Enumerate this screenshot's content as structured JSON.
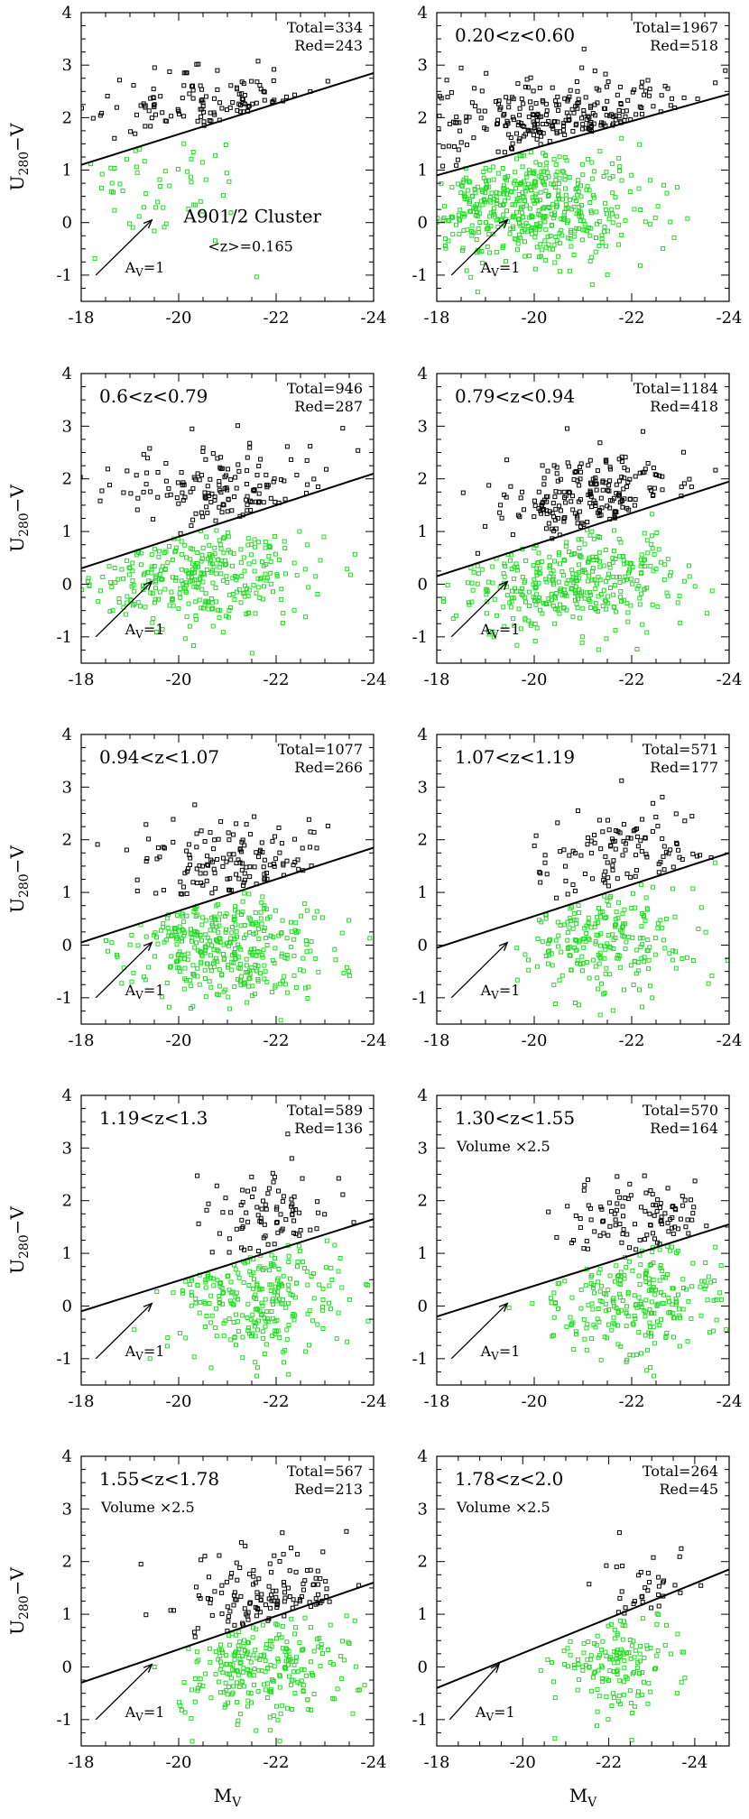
{
  "figure": {
    "x_axis_label": "M",
    "x_axis_label_sub": "V",
    "y_axis_label": "U",
    "y_axis_label_sub": "280",
    "y_axis_label_tail": "−V",
    "arrow_label": "A",
    "arrow_label_sub": "V",
    "arrow_label_tail": "=1",
    "colors": {
      "red_sequence": "#000000",
      "blue_cloud": "#22dd22",
      "line": "#000000"
    }
  },
  "chart_data": [
    {
      "type": "scatter",
      "id": "p1",
      "title": "A901/2 Cluster",
      "subtitle": "<z>=0.165",
      "total": "Total=334",
      "red": "Red=243",
      "note": "",
      "xlim": [
        -18,
        -24
      ],
      "ylim": [
        -1.5,
        4
      ],
      "xticks": [
        "-18",
        "-20",
        "-22",
        "-24"
      ],
      "yticks": [
        "-1",
        "0",
        "1",
        "2",
        "3",
        "4"
      ],
      "divider": {
        "x": [
          -18,
          -24
        ],
        "y": [
          1.1,
          2.85
        ]
      },
      "red_cloud": {
        "n": 120,
        "cx": -20.9,
        "cy": 2.2,
        "sx": 1.35,
        "sy": 0.32,
        "slope": 0.29,
        "offset": 1.1
      },
      "blue_cloud": {
        "n": 55,
        "cx": -19.6,
        "cy": 0.9,
        "sx": 1.0,
        "sy": 0.7,
        "slope": 0.29,
        "offset": 1.1
      }
    },
    {
      "type": "scatter",
      "id": "p2",
      "title": "0.20<z<0.60",
      "subtitle": "",
      "total": "Total=1967",
      "red": "Red=518",
      "note": "",
      "xlim": [
        -18,
        -24
      ],
      "ylim": [
        -1.5,
        4
      ],
      "xticks": [
        "-18",
        "-20",
        "-22",
        "-24"
      ],
      "yticks": [
        "-1",
        "0",
        "1",
        "2",
        "3",
        "4"
      ],
      "divider": {
        "x": [
          -18,
          -24
        ],
        "y": [
          0.9,
          2.45
        ]
      },
      "red_cloud": {
        "n": 260,
        "cx": -20.9,
        "cy": 1.85,
        "sx": 1.4,
        "sy": 0.45,
        "slope": 0.26,
        "offset": 0.9
      },
      "blue_cloud": {
        "n": 520,
        "cx": -19.8,
        "cy": 0.35,
        "sx": 1.15,
        "sy": 0.55,
        "slope": 0.26,
        "offset": 0.9
      }
    },
    {
      "type": "scatter",
      "id": "p3",
      "title": "0.6<z<0.79",
      "subtitle": "",
      "total": "Total=946",
      "red": "Red=287",
      "note": "",
      "xlim": [
        -18,
        -24
      ],
      "ylim": [
        -1.5,
        4
      ],
      "xticks": [
        "-18",
        "-20",
        "-22",
        "-24"
      ],
      "yticks": [
        "-1",
        "0",
        "1",
        "2",
        "3",
        "4"
      ],
      "divider": {
        "x": [
          -18,
          -24
        ],
        "y": [
          0.3,
          2.1
        ]
      },
      "red_cloud": {
        "n": 150,
        "cx": -21.0,
        "cy": 1.75,
        "sx": 1.2,
        "sy": 0.45,
        "slope": 0.3,
        "offset": 0.3
      },
      "blue_cloud": {
        "n": 330,
        "cx": -20.3,
        "cy": 0.15,
        "sx": 1.2,
        "sy": 0.5,
        "slope": 0.3,
        "offset": 0.3
      }
    },
    {
      "type": "scatter",
      "id": "p4",
      "title": "0.79<z<0.94",
      "subtitle": "",
      "total": "Total=1184",
      "red": "Red=418",
      "note": "",
      "xlim": [
        -18,
        -24
      ],
      "ylim": [
        -1.5,
        4
      ],
      "xticks": [
        "-18",
        "-20",
        "-22",
        "-24"
      ],
      "yticks": [
        "-1",
        "0",
        "1",
        "2",
        "3",
        "4"
      ],
      "divider": {
        "x": [
          -18,
          -24
        ],
        "y": [
          0.15,
          1.95
        ]
      },
      "red_cloud": {
        "n": 210,
        "cx": -21.3,
        "cy": 1.65,
        "sx": 1.0,
        "sy": 0.45,
        "slope": 0.3,
        "offset": 0.15
      },
      "blue_cloud": {
        "n": 380,
        "cx": -20.7,
        "cy": 0.1,
        "sx": 1.1,
        "sy": 0.5,
        "slope": 0.3,
        "offset": 0.15
      }
    },
    {
      "type": "scatter",
      "id": "p5",
      "title": "0.94<z<1.07",
      "subtitle": "",
      "total": "Total=1077",
      "red": "Red=266",
      "note": "",
      "xlim": [
        -18,
        -24
      ],
      "ylim": [
        -1.5,
        4
      ],
      "xticks": [
        "-18",
        "-20",
        "-22",
        "-24"
      ],
      "yticks": [
        "-1",
        "0",
        "1",
        "2",
        "3",
        "4"
      ],
      "divider": {
        "x": [
          -18,
          -24
        ],
        "y": [
          0.05,
          1.85
        ]
      },
      "red_cloud": {
        "n": 140,
        "cx": -21.2,
        "cy": 1.55,
        "sx": 1.0,
        "sy": 0.45,
        "slope": 0.3,
        "offset": 0.05
      },
      "blue_cloud": {
        "n": 380,
        "cx": -20.9,
        "cy": 0.0,
        "sx": 1.05,
        "sy": 0.55,
        "slope": 0.3,
        "offset": 0.05
      }
    },
    {
      "type": "scatter",
      "id": "p6",
      "title": "1.07<z<1.19",
      "subtitle": "",
      "total": "Total=571",
      "red": "Red=177",
      "note": "",
      "xlim": [
        -18,
        -24
      ],
      "ylim": [
        -1.5,
        4
      ],
      "xticks": [
        "-18",
        "-20",
        "-22",
        "-24"
      ],
      "yticks": [
        "-1",
        "0",
        "1",
        "2",
        "3",
        "4"
      ],
      "divider": {
        "x": [
          -18,
          -24
        ],
        "y": [
          -0.05,
          1.75
        ]
      },
      "red_cloud": {
        "n": 110,
        "cx": -21.9,
        "cy": 1.7,
        "sx": 0.9,
        "sy": 0.5,
        "slope": 0.3,
        "offset": -0.05
      },
      "blue_cloud": {
        "n": 230,
        "cx": -21.4,
        "cy": 0.15,
        "sx": 0.9,
        "sy": 0.55,
        "slope": 0.3,
        "offset": -0.05
      }
    },
    {
      "type": "scatter",
      "id": "p7",
      "title": "1.19<z<1.3",
      "subtitle": "",
      "total": "Total=589",
      "red": "Red=136",
      "note": "",
      "xlim": [
        -18,
        -24
      ],
      "ylim": [
        -1.5,
        4
      ],
      "xticks": [
        "-18",
        "-20",
        "-22",
        "-24"
      ],
      "yticks": [
        "-1",
        "0",
        "1",
        "2",
        "3",
        "4"
      ],
      "divider": {
        "x": [
          -18,
          -24
        ],
        "y": [
          -0.1,
          1.65
        ]
      },
      "red_cloud": {
        "n": 85,
        "cx": -21.9,
        "cy": 1.7,
        "sx": 0.75,
        "sy": 0.45,
        "slope": 0.3,
        "offset": -0.1
      },
      "blue_cloud": {
        "n": 260,
        "cx": -21.6,
        "cy": 0.2,
        "sx": 0.9,
        "sy": 0.55,
        "slope": 0.3,
        "offset": -0.1
      }
    },
    {
      "type": "scatter",
      "id": "p8",
      "title": "1.30<z<1.55",
      "subtitle": "",
      "total": "Total=570",
      "red": "Red=164",
      "note": "Volume ×2.5",
      "xlim": [
        -18,
        -24
      ],
      "ylim": [
        -1.5,
        4
      ],
      "xticks": [
        "-18",
        "-20",
        "-22",
        "-24"
      ],
      "yticks": [
        "-1",
        "0",
        "1",
        "2",
        "3",
        "4"
      ],
      "divider": {
        "x": [
          -18,
          -24
        ],
        "y": [
          -0.2,
          1.55
        ]
      },
      "red_cloud": {
        "n": 105,
        "cx": -22.3,
        "cy": 1.6,
        "sx": 0.85,
        "sy": 0.45,
        "slope": 0.3,
        "offset": -0.2
      },
      "blue_cloud": {
        "n": 250,
        "cx": -22.0,
        "cy": 0.2,
        "sx": 0.9,
        "sy": 0.55,
        "slope": 0.3,
        "offset": -0.2
      }
    },
    {
      "type": "scatter",
      "id": "p9",
      "title": "1.55<z<1.78",
      "subtitle": "",
      "total": "Total=567",
      "red": "Red=213",
      "note": "Volume ×2.5",
      "xlim": [
        -18,
        -24
      ],
      "ylim": [
        -1.5,
        4
      ],
      "xticks": [
        "-18",
        "-20",
        "-22",
        "-24"
      ],
      "yticks": [
        "-1",
        "0",
        "1",
        "2",
        "3",
        "4"
      ],
      "divider": {
        "x": [
          -18,
          -24
        ],
        "y": [
          -0.3,
          1.6
        ]
      },
      "red_cloud": {
        "n": 135,
        "cx": -21.8,
        "cy": 1.35,
        "sx": 0.9,
        "sy": 0.42,
        "slope": 0.3,
        "offset": -0.3
      },
      "blue_cloud": {
        "n": 260,
        "cx": -21.7,
        "cy": 0.05,
        "sx": 0.95,
        "sy": 0.55,
        "slope": 0.3,
        "offset": -0.3
      }
    },
    {
      "type": "scatter",
      "id": "p10",
      "title": "1.78<z<2.0",
      "subtitle": "",
      "total": "Total=264",
      "red": "Red=45",
      "note": "Volume ×2.5",
      "xlim": [
        -18,
        -24.8
      ],
      "ylim": [
        -1.5,
        4
      ],
      "xticks": [
        "-18",
        "-20",
        "-22",
        "-24"
      ],
      "yticks": [
        "-1",
        "0",
        "1",
        "2",
        "3",
        "4"
      ],
      "divider": {
        "x": [
          -18,
          -24.8
        ],
        "y": [
          -0.4,
          1.85
        ]
      },
      "red_cloud": {
        "n": 35,
        "cx": -22.9,
        "cy": 1.45,
        "sx": 0.6,
        "sy": 0.35,
        "slope": 0.3,
        "offset": -0.4
      },
      "blue_cloud": {
        "n": 150,
        "cx": -22.2,
        "cy": 0.0,
        "sx": 0.7,
        "sy": 0.55,
        "slope": 0.3,
        "offset": -0.4
      }
    }
  ]
}
